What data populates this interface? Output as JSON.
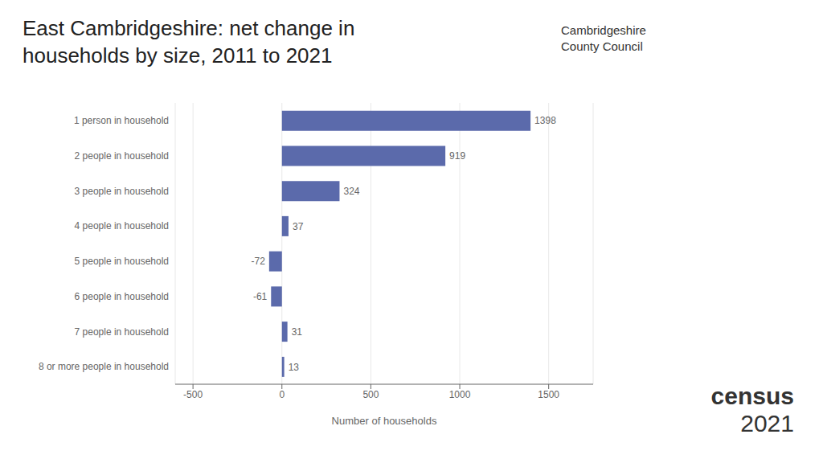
{
  "chart_data": {
    "type": "bar",
    "orientation": "horizontal",
    "title": "East Cambridgeshire: net change in\nhouseholds by size, 2011 to 2021",
    "categories": [
      "1 person in household",
      "2 people in household",
      "3 people in household",
      "4 people in household",
      "5 people in household",
      "6 people in household",
      "7 people in household",
      "8 or more people in household"
    ],
    "values": [
      1398,
      919,
      324,
      37,
      -72,
      -61,
      31,
      13
    ],
    "color": "#5b6aab",
    "xlabel": "Number of households",
    "xlim": [
      -600,
      1750
    ],
    "xticks": [
      -500,
      0,
      500,
      1000,
      1500
    ],
    "grid": true,
    "data_labels": true,
    "annotations": [
      "Cambridgeshire",
      "County Council",
      "census",
      "2021"
    ]
  }
}
